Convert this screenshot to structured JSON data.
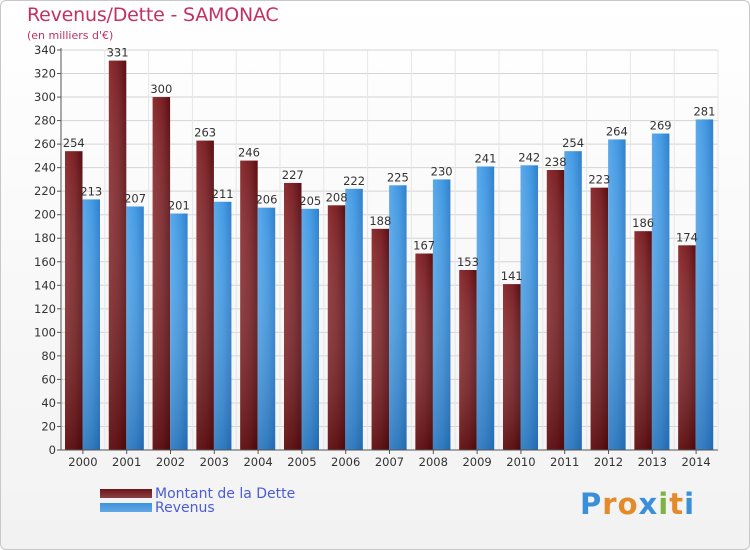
{
  "header": {
    "title": "Revenus/Dette - SAMONAC",
    "subtitle": "(en milliers d'€)"
  },
  "legend": {
    "items": [
      {
        "label": "Montant de la Dette",
        "color": "#6e1519"
      },
      {
        "label": "Revenus",
        "color": "#3e94de"
      }
    ]
  },
  "logo": {
    "text": "Proxiti",
    "letters": [
      "P",
      "r",
      "o",
      "x",
      "i",
      "t",
      "i"
    ],
    "colors": [
      "#3a8fd8",
      "#e38b2b",
      "#e38b2b",
      "#3a8fd8",
      "#7cb342",
      "#e38b2b",
      "#3a8fd8"
    ]
  },
  "chart_data": {
    "type": "bar",
    "title": "Revenus/Dette - SAMONAC",
    "subtitle": "(en milliers d'€)",
    "categories": [
      "2000",
      "2001",
      "2002",
      "2003",
      "2004",
      "2005",
      "2006",
      "2007",
      "2008",
      "2009",
      "2010",
      "2011",
      "2012",
      "2013",
      "2014"
    ],
    "series": [
      {
        "name": "Montant de la Dette",
        "color": "#6e1519",
        "values": [
          254,
          331,
          300,
          263,
          246,
          227,
          208,
          188,
          167,
          153,
          141,
          238,
          223,
          186,
          174
        ]
      },
      {
        "name": "Revenus",
        "color": "#3e94de",
        "values": [
          213,
          207,
          201,
          211,
          206,
          205,
          222,
          225,
          230,
          241,
          242,
          254,
          264,
          269,
          281
        ]
      }
    ],
    "ylim": [
      0,
      340
    ],
    "yticks": [
      0,
      20,
      40,
      60,
      80,
      100,
      120,
      140,
      160,
      180,
      200,
      220,
      240,
      260,
      280,
      300,
      320,
      340
    ],
    "grid": true,
    "legend_position": "bottom-left"
  }
}
